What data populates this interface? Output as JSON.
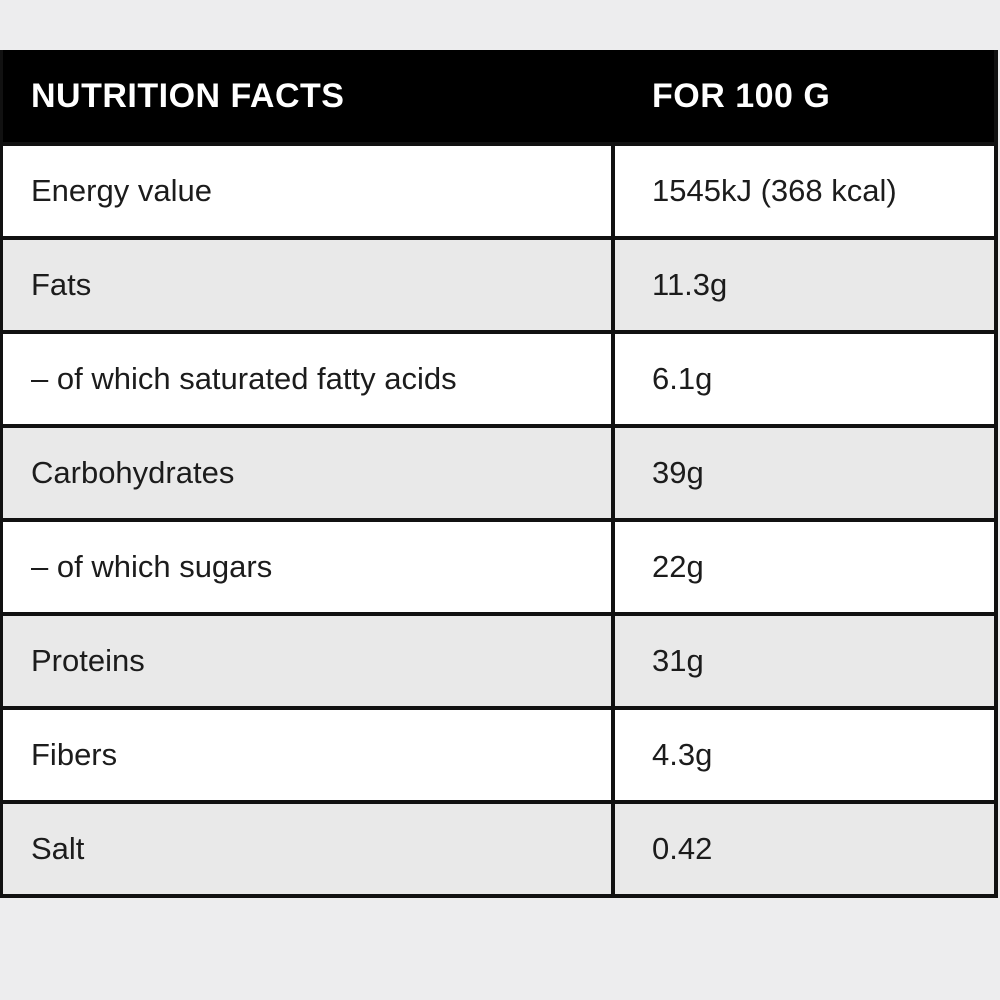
{
  "page": {
    "background_color": "#ededee"
  },
  "table": {
    "header": {
      "title": "NUTRITION FACTS",
      "unit_label": "FOR 100 G",
      "background_color": "#000000",
      "text_color": "#ffffff"
    },
    "colors": {
      "row_default_bg": "#ffffff",
      "row_alternate_bg": "#e9e9e9",
      "border_color": "#111111",
      "body_text_color": "#1c1c1c"
    },
    "rows": [
      {
        "label": "Energy value",
        "value": "1545kJ (368 kcal)"
      },
      {
        "label": "Fats",
        "value": "11.3g"
      },
      {
        "label": "– of which saturated fatty acids",
        "value": "6.1g"
      },
      {
        "label": "Carbohydrates",
        "value": "39g"
      },
      {
        "label": "– of which sugars",
        "value": "22g"
      },
      {
        "label": "Proteins",
        "value": "31g"
      },
      {
        "label": "Fibers",
        "value": "4.3g"
      },
      {
        "label": "Salt",
        "value": "0.42"
      }
    ]
  }
}
